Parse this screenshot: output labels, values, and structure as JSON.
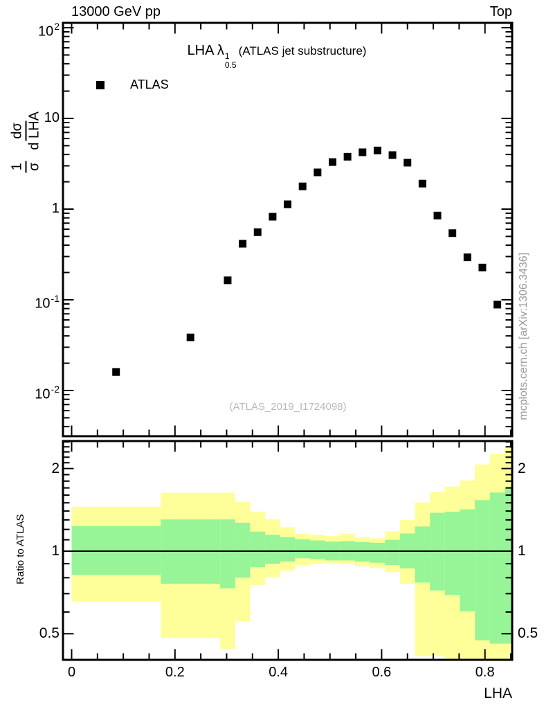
{
  "header": {
    "left": "13000 GeV pp",
    "right": "Top"
  },
  "title": {
    "prefix": "LHA λ",
    "sup": "1",
    "sub": "0.5",
    "suffix": "(ATLAS jet substructure)"
  },
  "legend": {
    "label": "ATLAS",
    "marker_color": "#000000"
  },
  "watermark": "(ATLAS_2019_I1724098)",
  "side_note": "mcplots.cern.ch [arXiv:1306.3436]",
  "axes": {
    "y_label": {
      "frac1_num": "1",
      "frac1_den": "σ",
      "frac2_num": "dσ",
      "frac2_den": "d LHA"
    },
    "x_label": "LHA",
    "ratio_label": "Ratio to ATLAS",
    "x_ticks": [
      {
        "v": 0,
        "label": "0"
      },
      {
        "v": 0.2,
        "label": "0.2"
      },
      {
        "v": 0.4,
        "label": "0.4"
      },
      {
        "v": 0.6,
        "label": "0.6"
      },
      {
        "v": 0.8,
        "label": "0.8"
      }
    ],
    "x_minor_step": 0.05,
    "y_ticks": [
      {
        "v": 100,
        "base": "10",
        "exp": "2"
      },
      {
        "v": 10,
        "base": "10",
        "exp": ""
      },
      {
        "v": 1,
        "base": "1",
        "exp": ""
      },
      {
        "v": 0.1,
        "base": "10",
        "exp": "-1"
      },
      {
        "v": 0.01,
        "base": "10",
        "exp": "-2"
      }
    ],
    "ratio_ticks": [
      {
        "v": 2,
        "label": "2"
      },
      {
        "v": 1,
        "label": "1"
      },
      {
        "v": 0.5,
        "label": "0.5"
      }
    ]
  },
  "chart_data": {
    "type": "scatter",
    "title": "LHA λ^1_0.5 (ATLAS jet substructure)",
    "xlabel": "LHA",
    "ylabel": "1/σ dσ/d LHA",
    "x_range": [
      -0.011,
      0.853
    ],
    "y_scale": "log",
    "y_range": [
      0.0031,
      113
    ],
    "grid": false,
    "legend_position": "top-left",
    "series": [
      {
        "name": "ATLAS",
        "marker": "filled-square",
        "color": "#000000",
        "points": [
          [
            0.086,
            0.016
          ],
          [
            0.23,
            0.0385
          ],
          [
            0.302,
            0.164
          ],
          [
            0.331,
            0.415
          ],
          [
            0.36,
            0.557
          ],
          [
            0.389,
            0.824
          ],
          [
            0.418,
            1.13
          ],
          [
            0.447,
            1.78
          ],
          [
            0.476,
            2.54
          ],
          [
            0.505,
            3.3
          ],
          [
            0.534,
            3.78
          ],
          [
            0.563,
            4.23
          ],
          [
            0.592,
            4.43
          ],
          [
            0.621,
            3.94
          ],
          [
            0.65,
            3.25
          ],
          [
            0.679,
            1.91
          ],
          [
            0.708,
            0.849
          ],
          [
            0.737,
            0.543
          ],
          [
            0.766,
            0.294
          ],
          [
            0.795,
            0.227
          ],
          [
            0.824,
            0.0885
          ]
        ]
      }
    ],
    "ratio_panel": {
      "ylabel": "Ratio to ATLAS",
      "y_scale": "log",
      "y_range": [
        0.402,
        2.52
      ],
      "baseline": 1,
      "band_colors": {
        "outer": "#ffff99",
        "inner": "#97f597"
      },
      "bands": [
        {
          "x0": 0.0,
          "x1": 0.1725,
          "ylo": 0.655,
          "glo": 0.819,
          "ghi": 1.235,
          "yhi": 1.452
        },
        {
          "x0": 0.1725,
          "x1": 0.2875,
          "ylo": 0.482,
          "glo": 0.76,
          "ghi": 1.305,
          "yhi": 1.633
        },
        {
          "x0": 0.2875,
          "x1": 0.3165,
          "ylo": 0.439,
          "glo": 0.732,
          "ghi": 1.305,
          "yhi": 1.633
        },
        {
          "x0": 0.3165,
          "x1": 0.3455,
          "ylo": 0.554,
          "glo": 0.8,
          "ghi": 1.27,
          "yhi": 1.514
        },
        {
          "x0": 0.3455,
          "x1": 0.3745,
          "ylo": 0.753,
          "glo": 0.874,
          "ghi": 1.178,
          "yhi": 1.393
        },
        {
          "x0": 0.3745,
          "x1": 0.4035,
          "ylo": 0.804,
          "glo": 0.899,
          "ghi": 1.146,
          "yhi": 1.305
        },
        {
          "x0": 0.4035,
          "x1": 0.4325,
          "ylo": 0.85,
          "glo": 0.916,
          "ghi": 1.125,
          "yhi": 1.223
        },
        {
          "x0": 0.4325,
          "x1": 0.4615,
          "ylo": 0.89,
          "glo": 0.942,
          "ghi": 1.104,
          "yhi": 1.157
        },
        {
          "x0": 0.4615,
          "x1": 0.4905,
          "ylo": 0.899,
          "glo": 0.934,
          "ghi": 1.094,
          "yhi": 1.146
        },
        {
          "x0": 0.4905,
          "x1": 0.5195,
          "ylo": 0.907,
          "glo": 0.925,
          "ghi": 1.083,
          "yhi": 1.136
        },
        {
          "x0": 0.5195,
          "x1": 0.5485,
          "ylo": 0.899,
          "glo": 0.925,
          "ghi": 1.087,
          "yhi": 1.157
        },
        {
          "x0": 0.5485,
          "x1": 0.5775,
          "ylo": 0.882,
          "glo": 0.916,
          "ghi": 1.079,
          "yhi": 1.125
        },
        {
          "x0": 0.5775,
          "x1": 0.6065,
          "ylo": 0.867,
          "glo": 0.907,
          "ghi": 1.073,
          "yhi": 1.114
        },
        {
          "x0": 0.6065,
          "x1": 0.6355,
          "ylo": 0.839,
          "glo": 0.89,
          "ghi": 1.1,
          "yhi": 1.18
        },
        {
          "x0": 0.6355,
          "x1": 0.6645,
          "ylo": 0.76,
          "glo": 0.865,
          "ghi": 1.16,
          "yhi": 1.3
        },
        {
          "x0": 0.6645,
          "x1": 0.6935,
          "ylo": 0.414,
          "glo": 0.768,
          "ghi": 1.23,
          "yhi": 1.505
        },
        {
          "x0": 0.6935,
          "x1": 0.7225,
          "ylo": 0.414,
          "glo": 0.719,
          "ghi": 1.38,
          "yhi": 1.642
        },
        {
          "x0": 0.7225,
          "x1": 0.7515,
          "ylo": 0.402,
          "glo": 0.692,
          "ghi": 1.393,
          "yhi": 1.72
        },
        {
          "x0": 0.7515,
          "x1": 0.7805,
          "ylo": 0.402,
          "glo": 0.603,
          "ghi": 1.42,
          "yhi": 1.81
        },
        {
          "x0": 0.7805,
          "x1": 0.8095,
          "ylo": 0.402,
          "glo": 0.473,
          "ghi": 1.535,
          "yhi": 2.07
        },
        {
          "x0": 0.8095,
          "x1": 0.8385,
          "ylo": 0.402,
          "glo": 0.46,
          "ghi": 1.635,
          "yhi": 2.26
        },
        {
          "x0": 0.8385,
          "x1": 0.8527,
          "ylo": 0.402,
          "glo": 0.46,
          "ghi": 1.7,
          "yhi": 2.38
        }
      ]
    }
  }
}
